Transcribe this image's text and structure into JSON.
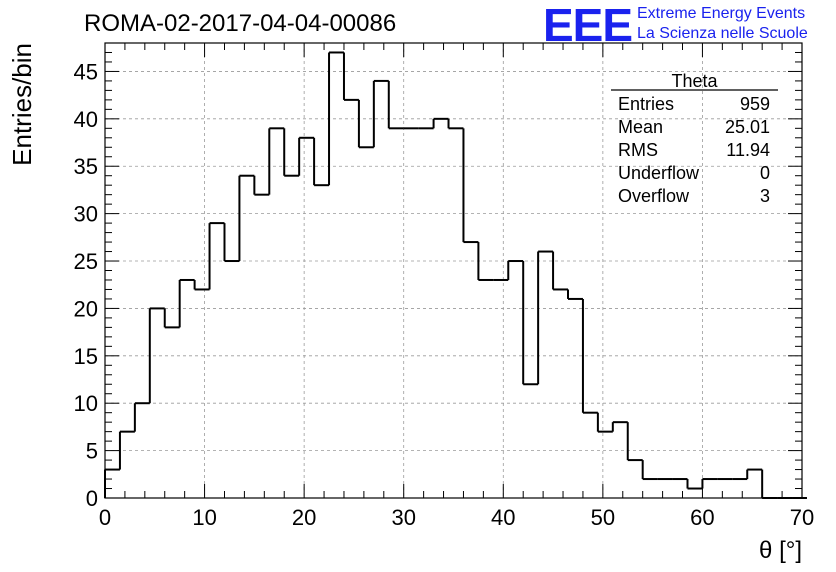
{
  "title": "ROMA-02-2017-04-04-00086",
  "logo": {
    "mark": "EEE",
    "line1": "Extreme Energy Events",
    "line2": "La Scienza nelle Scuole",
    "color": "#1a22ee"
  },
  "stats": {
    "name": "Theta",
    "rows": [
      {
        "label": "Entries",
        "value": "959"
      },
      {
        "label": "Mean",
        "value": "25.01"
      },
      {
        "label": "RMS",
        "value": "11.94"
      },
      {
        "label": "Underflow",
        "value": "0"
      },
      {
        "label": "Overflow",
        "value": "3"
      }
    ]
  },
  "chart_data": {
    "type": "bar",
    "style": "step-histogram",
    "title": "ROMA-02-2017-04-04-00086",
    "xlabel": "θ [°]",
    "ylabel": "Entries/bin",
    "xlim": [
      0,
      70
    ],
    "ylim": [
      0,
      48
    ],
    "grid": true,
    "bin_width": 1.5,
    "x_start": 0,
    "x_ticks": [
      0,
      10,
      20,
      30,
      40,
      50,
      60,
      70
    ],
    "y_ticks": [
      0,
      5,
      10,
      15,
      20,
      25,
      30,
      35,
      40,
      45
    ],
    "values": [
      3,
      7,
      10,
      20,
      18,
      23,
      22,
      29,
      25,
      34,
      32,
      39,
      34,
      38,
      33,
      47,
      42,
      37,
      44,
      39,
      39,
      39,
      40,
      39,
      27,
      23,
      23,
      25,
      12,
      26,
      22,
      21,
      9,
      7,
      8,
      4,
      2,
      2,
      2,
      1,
      2,
      2,
      2,
      3,
      0,
      0,
      0
    ]
  }
}
